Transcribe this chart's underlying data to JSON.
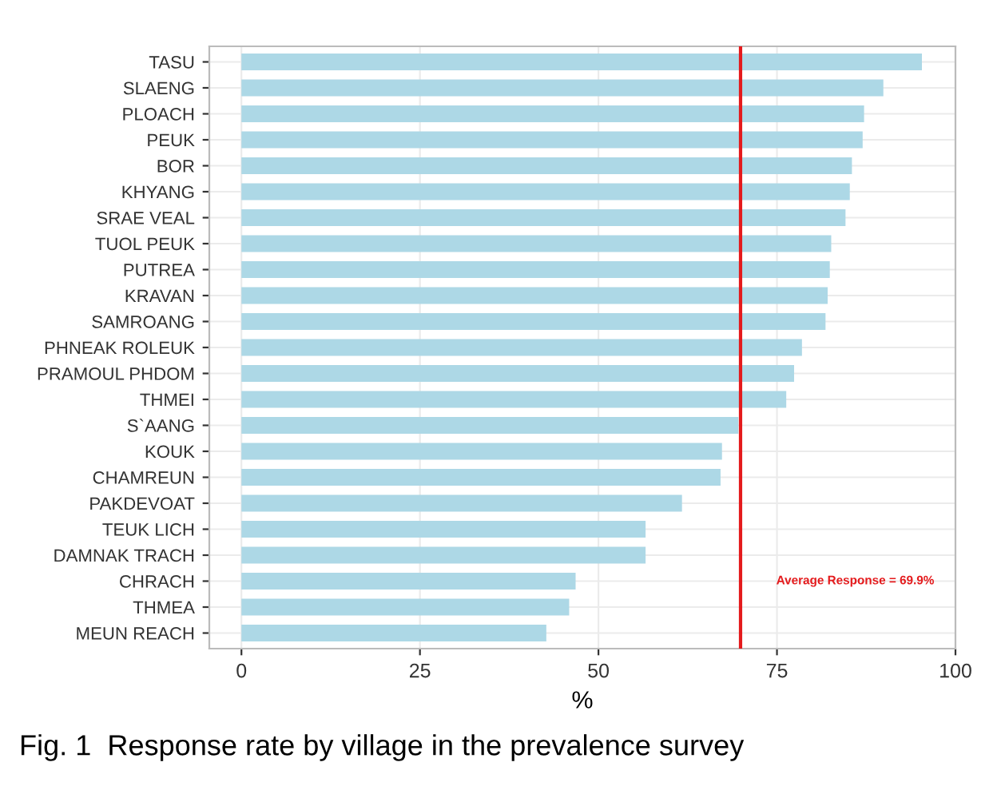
{
  "chart_data": {
    "type": "bar",
    "orientation": "horizontal",
    "xlabel": "%",
    "categories": [
      "TASU",
      "SLAENG",
      "PLOACH",
      "PEUK",
      "BOR",
      "KHYANG",
      "SRAE VEAL",
      "TUOL PEUK",
      "PUTREA",
      "KRAVAN",
      "SAMROANG",
      "PHNEAK ROLEUK",
      "PRAMOUL PHDOM",
      "THMEI",
      "S`AANG",
      "KOUK",
      "CHAMREUN",
      "PAKDEVOAT",
      "TEUK LICH",
      "DAMNAK TRACH",
      "CHRACH",
      "THMEA",
      "MEUN REACH"
    ],
    "values": [
      95.3,
      89.9,
      87.2,
      87.0,
      85.5,
      85.2,
      84.6,
      82.6,
      82.4,
      82.1,
      81.8,
      78.5,
      77.4,
      76.3,
      69.6,
      67.3,
      67.1,
      61.7,
      56.6,
      56.6,
      46.8,
      45.9,
      42.7
    ],
    "color": "#add8e6",
    "xlim": [
      -4.5,
      100
    ],
    "xticks": [
      0,
      25,
      50,
      75,
      100
    ],
    "grid": true,
    "ref_lines": [
      {
        "axis": "x",
        "value": 69.9,
        "label": "Average Response = 69.9%",
        "color": "#e41a1c"
      }
    ],
    "annotations": [
      "Fig. 1  Response rate by village in the prevalence survey"
    ]
  }
}
